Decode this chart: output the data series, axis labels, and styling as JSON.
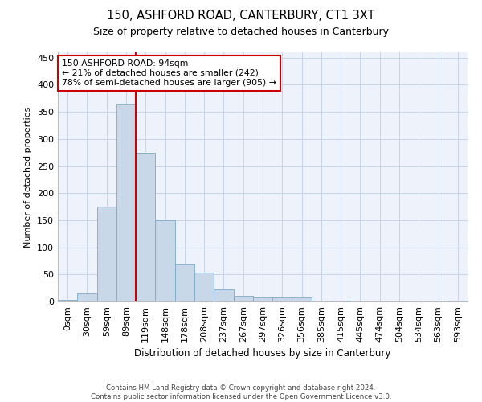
{
  "title_line1": "150, ASHFORD ROAD, CANTERBURY, CT1 3XT",
  "title_line2": "Size of property relative to detached houses in Canterbury",
  "xlabel": "Distribution of detached houses by size in Canterbury",
  "ylabel": "Number of detached properties",
  "bar_labels": [
    "0sqm",
    "30sqm",
    "59sqm",
    "89sqm",
    "119sqm",
    "148sqm",
    "178sqm",
    "208sqm",
    "237sqm",
    "267sqm",
    "297sqm",
    "326sqm",
    "356sqm",
    "385sqm",
    "415sqm",
    "445sqm",
    "474sqm",
    "504sqm",
    "534sqm",
    "563sqm",
    "593sqm"
  ],
  "bar_heights": [
    3,
    15,
    175,
    365,
    275,
    150,
    70,
    53,
    22,
    10,
    7,
    7,
    8,
    0,
    2,
    0,
    0,
    0,
    0,
    0,
    2
  ],
  "bar_color": "#c8d8e8",
  "bar_edge_color": "#7aaac8",
  "grid_color": "#c8d4e8",
  "bg_color": "#eef2fa",
  "vline_x": 3.5,
  "vline_color": "#cc0000",
  "annotation_text": "150 ASHFORD ROAD: 94sqm\n← 21% of detached houses are smaller (242)\n78% of semi-detached houses are larger (905) →",
  "annotation_box_color": "#ffffff",
  "annotation_box_edge": "#cc0000",
  "ylim": [
    0,
    460
  ],
  "yticks": [
    0,
    50,
    100,
    150,
    200,
    250,
    300,
    350,
    400,
    450
  ],
  "footer_line1": "Contains HM Land Registry data © Crown copyright and database right 2024.",
  "footer_line2": "Contains public sector information licensed under the Open Government Licence v3.0."
}
